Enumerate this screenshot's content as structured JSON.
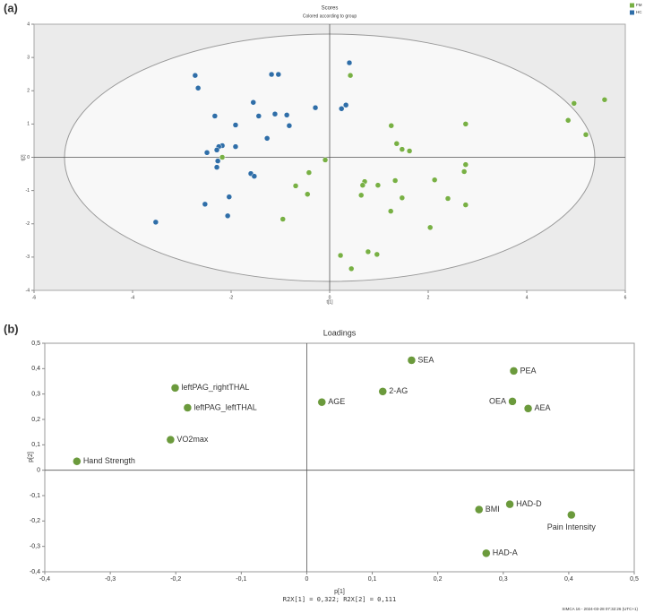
{
  "chart_data": [
    {
      "type": "scatter",
      "panel": "(a)",
      "title": "Scores",
      "subtitle": "Colored according to group",
      "xlabel": "t[1]",
      "ylabel": "t[2]",
      "xlim": [
        -6,
        6
      ],
      "xticks": [
        -6,
        -4,
        -2,
        0,
        2,
        4,
        6
      ],
      "ylim": [
        -4,
        4
      ],
      "yticks": [
        -4,
        -3,
        -2,
        -1,
        0,
        1,
        2,
        3,
        4
      ],
      "legend": "top-right",
      "series": [
        {
          "name": "FM",
          "color": "#78b044",
          "x": [
            0.42,
            -0.69,
            -0.95,
            -0.42,
            -0.45,
            -0.09,
            -2.18,
            1.25,
            1.36,
            1.47,
            1.62,
            2.76,
            2.76,
            2.73,
            2.13,
            2.4,
            2.76,
            2.04,
            0.71,
            0.67,
            0.64,
            0.98,
            1.33,
            1.24,
            1.47,
            0.22,
            0.44,
            0.78,
            0.96,
            4.96,
            4.84,
            5.2,
            5.58
          ],
          "values": [
            2.46,
            -0.86,
            -1.86,
            -0.46,
            -1.11,
            -0.08,
            0.0,
            0.95,
            0.41,
            0.24,
            0.19,
            1.0,
            -0.22,
            -0.43,
            -0.68,
            -1.24,
            -1.43,
            -2.11,
            -0.73,
            -0.84,
            -1.14,
            -0.84,
            -0.7,
            -1.62,
            -1.22,
            -2.95,
            -3.35,
            -2.84,
            -2.92,
            1.62,
            1.11,
            0.68,
            1.73
          ]
        },
        {
          "name": "HC",
          "color": "#2f6ea8",
          "x": [
            -2.73,
            -2.67,
            -1.18,
            -1.04,
            0.4,
            0.33,
            0.24,
            -0.29,
            -1.55,
            -1.44,
            -1.11,
            -0.87,
            -0.82,
            -1.27,
            -1.91,
            -2.33,
            -2.18,
            -2.25,
            -2.29,
            -2.49,
            -1.91,
            -1.6,
            -1.53,
            -2.29,
            -2.27,
            -2.04,
            -2.53,
            -2.07,
            -3.53
          ],
          "values": [
            2.46,
            2.08,
            2.49,
            2.49,
            2.84,
            1.57,
            1.46,
            1.49,
            1.65,
            1.24,
            1.3,
            1.27,
            0.95,
            0.57,
            0.97,
            1.24,
            0.35,
            0.32,
            0.22,
            0.14,
            0.32,
            -0.49,
            -0.57,
            -0.3,
            -0.11,
            -1.19,
            -1.41,
            -1.76,
            -1.95
          ]
        }
      ]
    },
    {
      "type": "scatter",
      "panel": "(b)",
      "title": "Loadings",
      "xlabel": "p[1]",
      "ylabel": "p[2]",
      "footnote": "R2X[1] = 0,322; R2X[2] = 0,111",
      "credit": "SIMCA 16 - 2024-03-28 07:32:26 (UTC+1)",
      "color": "#6b9a3c",
      "xlim": [
        -0.4,
        0.5
      ],
      "xticks": [
        {
          "value": -0.4,
          "label": "-0,4"
        },
        {
          "value": -0.3,
          "label": "-0,3"
        },
        {
          "value": -0.2,
          "label": "-0,2"
        },
        {
          "value": -0.1,
          "label": "-0,1"
        },
        0,
        {
          "value": 0.1,
          "label": "0,1"
        },
        {
          "value": 0.2,
          "label": "0,2"
        },
        {
          "value": 0.3,
          "label": "0,3"
        },
        {
          "value": 0.4,
          "label": "0,4"
        },
        {
          "value": 0.5,
          "label": "0,5"
        }
      ],
      "ylim": [
        -0.4,
        0.5
      ],
      "yticks": [
        {
          "value": -0.4,
          "label": "-0,4"
        },
        {
          "value": -0.3,
          "label": "-0,3"
        },
        {
          "value": -0.2,
          "label": "-0,2"
        },
        {
          "value": -0.1,
          "label": "-0,1"
        },
        0,
        {
          "value": 0.1,
          "label": "0,1"
        },
        {
          "value": 0.2,
          "label": "0,2"
        },
        {
          "value": 0.3,
          "label": "0,3"
        },
        {
          "value": 0.4,
          "label": "0,4"
        },
        {
          "value": 0.5,
          "label": "0,5"
        }
      ],
      "labels": [
        "SEA",
        "PEA",
        "OEA",
        "AEA",
        "2-AG",
        "AGE",
        "leftPAG_rightTHAL",
        "leftPAG_leftTHAL",
        "VO2max",
        "Hand Strength",
        "HAD-D",
        "BMI",
        "Pain Intensity",
        "HAD-A"
      ],
      "x": [
        0.16,
        0.316,
        0.314,
        0.338,
        0.116,
        0.023,
        -0.201,
        -0.182,
        -0.208,
        -0.351,
        0.31,
        0.263,
        0.404,
        0.274
      ],
      "values": [
        0.433,
        0.391,
        0.271,
        0.243,
        0.31,
        0.268,
        0.324,
        0.246,
        0.12,
        0.035,
        -0.134,
        -0.155,
        -0.176,
        -0.327
      ]
    }
  ]
}
